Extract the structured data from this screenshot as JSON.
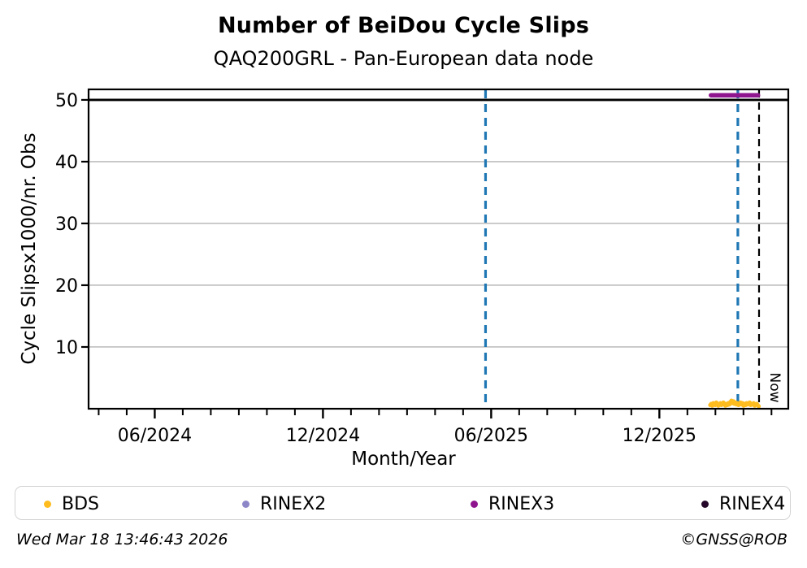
{
  "header": {
    "title": "Number of BeiDou Cycle Slips",
    "subtitle": "QAQ200GRL - Pan-European data node"
  },
  "footer": {
    "timestamp": "Wed Mar 18 13:46:43 2026",
    "credit": "©GNSS@ROB"
  },
  "legend": {
    "position": "bottom",
    "items": [
      {
        "label": "BDS",
        "color": "#ffbc1e"
      },
      {
        "label": "RINEX2",
        "color": "#8d87c7"
      },
      {
        "label": "RINEX3",
        "color": "#8f158f"
      },
      {
        "label": "RINEX4",
        "color": "#26092a"
      }
    ]
  },
  "chart_data": {
    "type": "scatter",
    "title": "Number of BeiDou Cycle Slips",
    "subtitle": "QAQ200GRL - Pan-European data node",
    "xlabel": "Month/Year",
    "ylabel": "Cycle Slipsx1000/nr. Obs",
    "xlim_decimal_year": [
      2024.22,
      2026.3
    ],
    "ylim": [
      0,
      51.7
    ],
    "yticks": [
      10,
      20,
      30,
      40,
      50
    ],
    "xticks": [
      {
        "x": 2024.4167,
        "label": "06/2024"
      },
      {
        "x": 2024.9167,
        "label": "12/2024"
      },
      {
        "x": 2025.4167,
        "label": "06/2025"
      },
      {
        "x": 2025.9167,
        "label": "12/2025"
      }
    ],
    "minor_xtick_interval_months": 1,
    "grid": "horizontal-only",
    "grid_color": "#b3b3b3",
    "max_line": {
      "y": 50,
      "color": "#000000"
    },
    "event_lines": [
      {
        "x": 2025.4,
        "color": "#1f77b4",
        "style": "dashed"
      },
      {
        "x": 2026.15,
        "color": "#1f77b4",
        "style": "dashed"
      }
    ],
    "now_line": {
      "x": 2026.213,
      "label": "Now",
      "color": "#000000",
      "style": "dashed"
    },
    "series": [
      {
        "name": "BDS",
        "type": "scatter",
        "color": "#ffbc1e",
        "x_start_decimal_year": 2026.068,
        "x_step_decimal_year": 0.003,
        "values": [
          0.6,
          0.8,
          0.5,
          0.9,
          0.7,
          0.6,
          1.0,
          0.8,
          0.5,
          0.7,
          0.9,
          0.6,
          0.8,
          1.0,
          0.7,
          0.5,
          0.8,
          0.6,
          0.9,
          0.7,
          1.1,
          1.3,
          0.9,
          1.2,
          0.8,
          1.0,
          0.7,
          0.9,
          0.6,
          0.8,
          1.0,
          0.7,
          0.9,
          0.5,
          0.8,
          0.6,
          0.9,
          0.7,
          0.8,
          1.0,
          0.6,
          0.8,
          0.7,
          0.9,
          0.5,
          0.7,
          0.8,
          0.6,
          0.4
        ]
      },
      {
        "name": "RINEX3",
        "type": "segment",
        "color": "#8f158f",
        "x_start": 2026.07,
        "x_end": 2026.21,
        "y": 50.75
      },
      {
        "name": "RINEX2",
        "type": "scatter",
        "color": "#8d87c7",
        "values": []
      },
      {
        "name": "RINEX4",
        "type": "scatter",
        "color": "#26092a",
        "values": []
      }
    ]
  }
}
